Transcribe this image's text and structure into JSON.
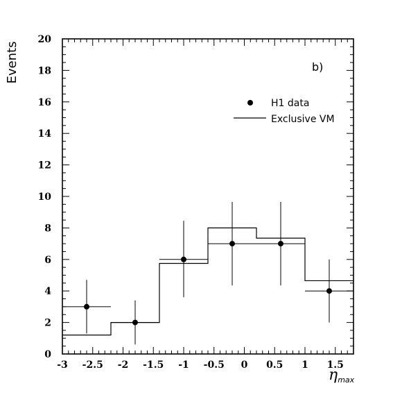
{
  "chart_data": {
    "type": "histogram-with-points",
    "panel_label": "b)",
    "ylabel": "Events",
    "xlabel_symbol": "η",
    "xlabel_subscript": "max",
    "xlim": [
      -3,
      1.8
    ],
    "ylim": [
      0,
      20
    ],
    "x_tick_labels": [
      "-3",
      "-2.5",
      "-2",
      "-1.5",
      "-1",
      "-0.5",
      "0",
      "0.5",
      "1",
      "1.5"
    ],
    "y_tick_labels": [
      "0",
      "2",
      "4",
      "6",
      "8",
      "10",
      "12",
      "14",
      "16",
      "18",
      "20"
    ],
    "legend": {
      "placement": "top-right",
      "data_label": "H1 data",
      "line_label": "Exclusive VM"
    },
    "data_points": [
      {
        "x": -2.6,
        "y": 3,
        "x_lo": -3.0,
        "x_hi": -2.2,
        "y_lo": 1.3,
        "y_hi": 4.7
      },
      {
        "x": -1.8,
        "y": 2,
        "x_lo": -2.2,
        "x_hi": -1.4,
        "y_lo": 0.6,
        "y_hi": 3.4
      },
      {
        "x": -1.0,
        "y": 6,
        "x_lo": -1.4,
        "x_hi": -0.6,
        "y_lo": 3.6,
        "y_hi": 8.45
      },
      {
        "x": -0.2,
        "y": 7,
        "x_lo": -0.6,
        "x_hi": 0.2,
        "y_lo": 4.35,
        "y_hi": 9.65
      },
      {
        "x": 0.6,
        "y": 7,
        "x_lo": 0.2,
        "x_hi": 1.0,
        "y_lo": 4.35,
        "y_hi": 9.65
      },
      {
        "x": 1.4,
        "y": 4,
        "x_lo": 1.0,
        "x_hi": 1.8,
        "y_lo": 2.0,
        "y_hi": 6.0
      }
    ],
    "histogram": {
      "name": "Exclusive VM",
      "bin_edges": [
        -3.0,
        -2.2,
        -1.4,
        -0.6,
        0.2,
        1.0,
        1.8
      ],
      "values": [
        1.2,
        2.0,
        5.75,
        8.0,
        7.35,
        4.65
      ]
    }
  }
}
